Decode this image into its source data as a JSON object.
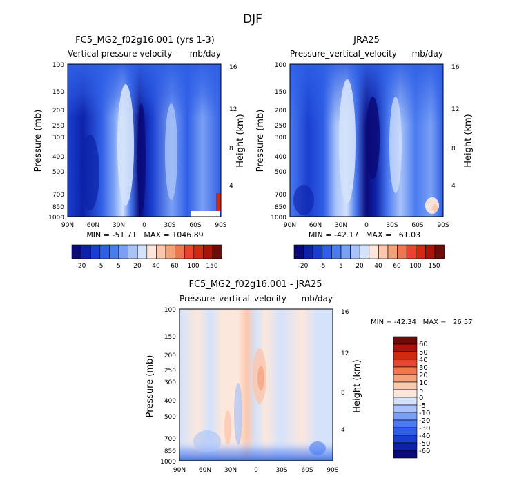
{
  "figure": {
    "title": "DJF"
  },
  "chart_data": [
    {
      "type": "heatmap",
      "title": "FC5_MG2_f02g16.001 (yrs 1-3)",
      "subtitle_left": "Vertical pressure velocity",
      "subtitle_right": "mb/day",
      "ylabel": "Pressure (mb)",
      "ylabel_right": "Height (km)",
      "x_ticks": [
        "90N",
        "60N",
        "30N",
        "0",
        "30S",
        "60S",
        "90S"
      ],
      "y_ticks": [
        "100",
        "150",
        "200",
        "250",
        "300",
        "400",
        "500",
        "700",
        "850",
        "1000"
      ],
      "y_right_ticks": [
        "16",
        "12",
        "8",
        "4"
      ],
      "stats": "MIN = -51.71   MAX = 1046.89",
      "colorbar_labels": [
        "-20",
        "-5",
        "5",
        "20",
        "40",
        "60",
        "100",
        "150"
      ]
    },
    {
      "type": "heatmap",
      "title": "JRA25",
      "subtitle_left": "Pressure_vertical_velocity",
      "subtitle_right": "mb/day",
      "ylabel": "Pressure (mb)",
      "ylabel_right": "Height (km)",
      "x_ticks": [
        "90N",
        "60N",
        "30N",
        "0",
        "30S",
        "60S",
        "90S"
      ],
      "y_ticks": [
        "100",
        "150",
        "200",
        "250",
        "300",
        "400",
        "500",
        "700",
        "850",
        "1000"
      ],
      "y_right_ticks": [
        "16",
        "12",
        "8",
        "4"
      ],
      "stats": "MIN = -42.17   MAX =   61.03",
      "colorbar_labels": [
        "-20",
        "-5",
        "5",
        "20",
        "40",
        "60",
        "100",
        "150"
      ]
    },
    {
      "type": "heatmap",
      "title": "FC5_MG2_f02g16.001 - JRA25",
      "subtitle_left": "Pressure_vertical_velocity",
      "subtitle_right": "mb/day",
      "ylabel": "Pressure (mb)",
      "ylabel_right": "Height (km)",
      "x_ticks": [
        "90N",
        "60N",
        "30N",
        "0",
        "30S",
        "60S",
        "90S"
      ],
      "y_ticks": [
        "100",
        "150",
        "200",
        "250",
        "300",
        "400",
        "500",
        "700",
        "850",
        "1000"
      ],
      "y_right_ticks": [
        "16",
        "12",
        "8",
        "4"
      ],
      "stats": "MIN = -42.34   MAX =   26.57",
      "colorbar_labels": [
        "60",
        "50",
        "40",
        "30",
        "20",
        "10",
        "5",
        "0",
        "-5",
        "-10",
        "-20",
        "-30",
        "-40",
        "-50",
        "-60"
      ]
    }
  ],
  "colors": {
    "cb1": [
      "#0a0a78",
      "#0d22a8",
      "#1a3fd0",
      "#2f5fe6",
      "#4a7bf0",
      "#7aa0f5",
      "#a9c3f8",
      "#d4e2fb",
      "#fde7dc",
      "#fbc7ae",
      "#f5a07a",
      "#f07650",
      "#e8452a",
      "#d02a10",
      "#a8140a",
      "#6e0a0a"
    ],
    "cb2": [
      "#6e0a0a",
      "#a8140a",
      "#d02a10",
      "#e8452a",
      "#f07650",
      "#f5a07a",
      "#fbc7ae",
      "#fde7dc",
      "#d4e2fb",
      "#a9c3f8",
      "#7aa0f5",
      "#4a7bf0",
      "#2f5fe6",
      "#1a3fd0",
      "#0d22a8",
      "#0a0a78"
    ]
  }
}
